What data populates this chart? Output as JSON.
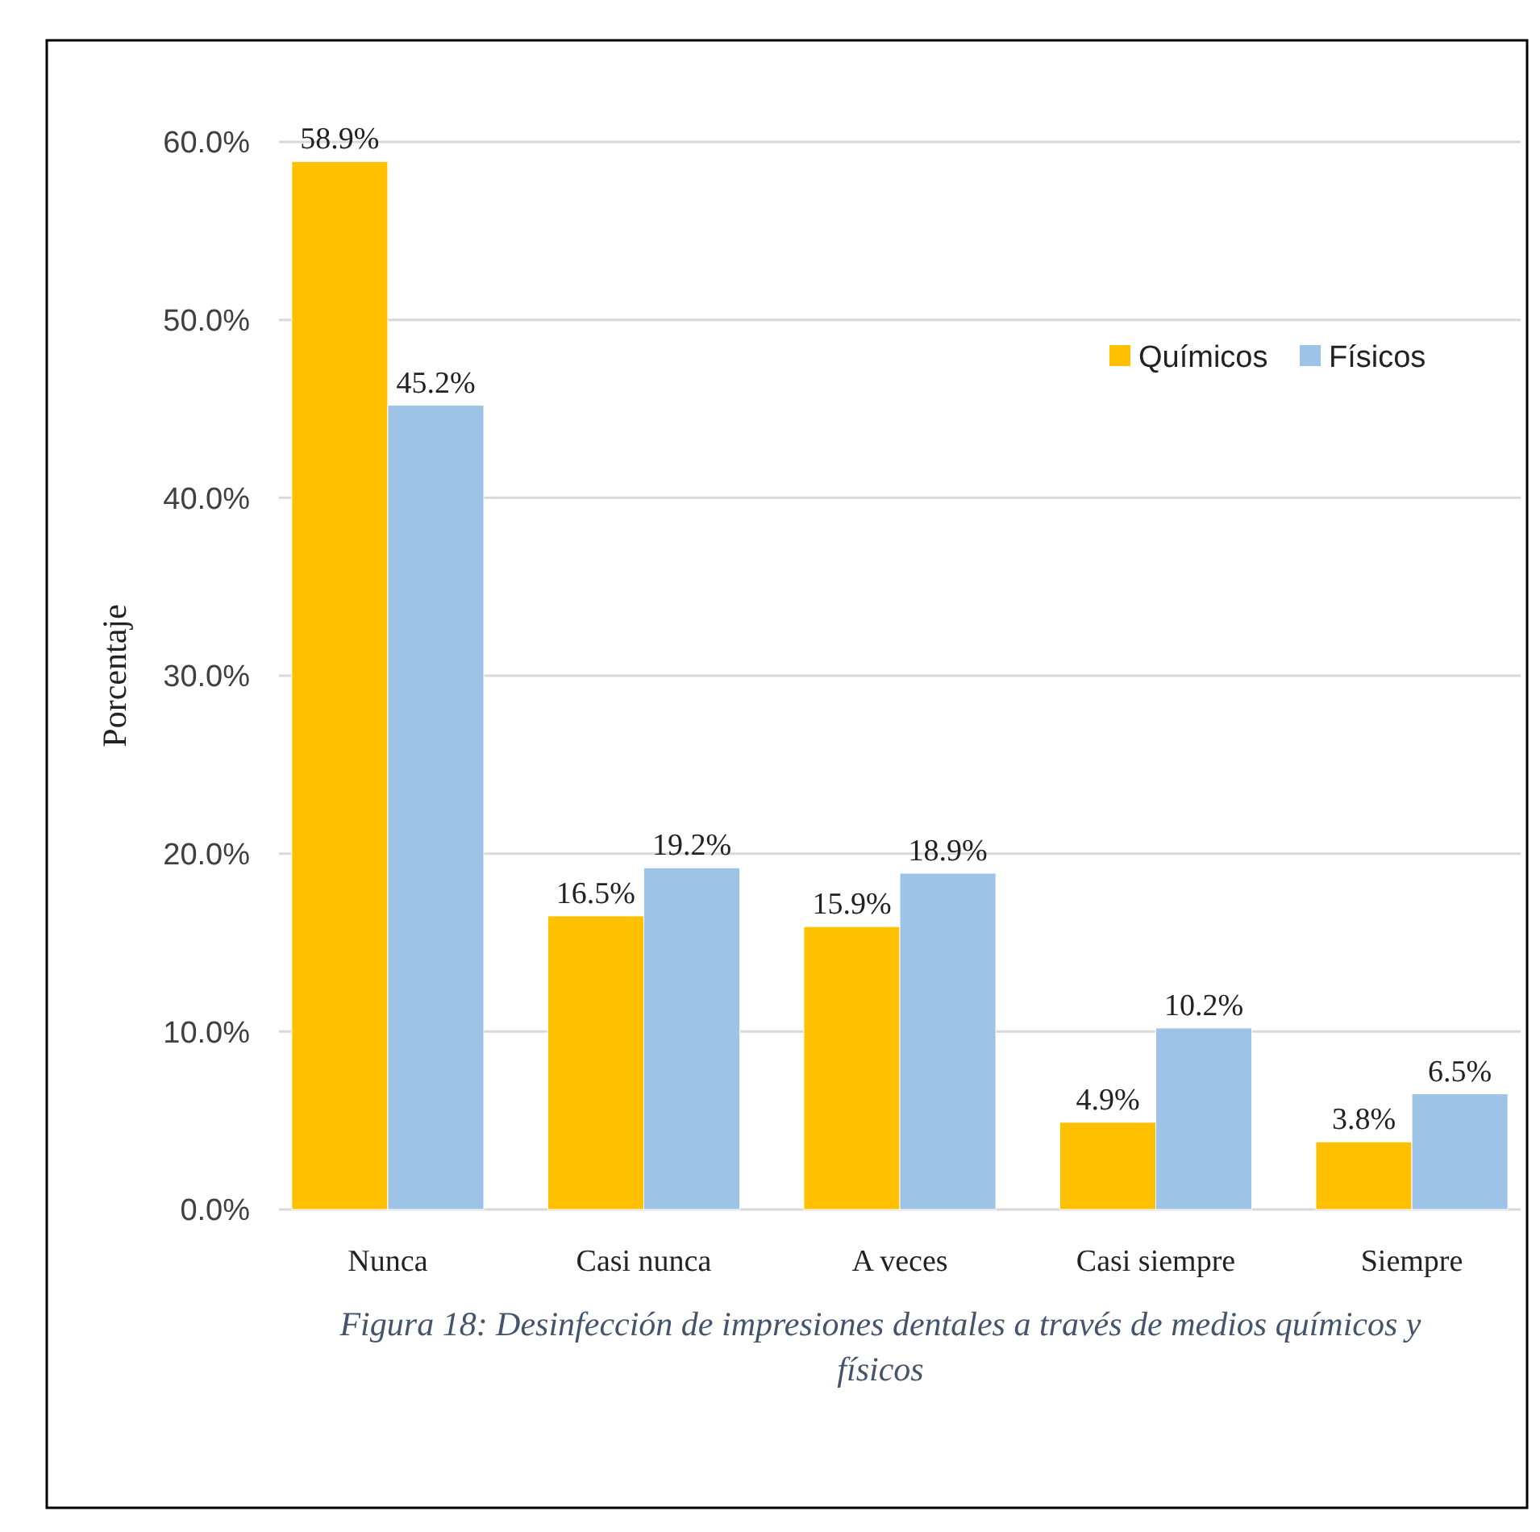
{
  "chart_data": {
    "type": "bar",
    "ylabel": "Porcentaje",
    "categories": [
      "Nunca",
      "Casi nunca",
      "A veces",
      "Casi siempre",
      "Siempre"
    ],
    "series": [
      {
        "name": "Químicos",
        "color": "#ffc000",
        "values": [
          58.9,
          16.5,
          15.9,
          4.9,
          3.8
        ],
        "value_labels": [
          "58.9%",
          "16.5%",
          "15.9%",
          "4.9%",
          "3.8%"
        ]
      },
      {
        "name": "Físicos",
        "color": "#9dc3e6",
        "values": [
          45.2,
          19.2,
          18.9,
          10.2,
          6.5
        ],
        "value_labels": [
          "45.2%",
          "19.2%",
          "18.9%",
          "10.2%",
          "6.5%"
        ]
      }
    ],
    "ylim": [
      0,
      60
    ],
    "yticks": [
      {
        "value": 0,
        "label": "0.0%"
      },
      {
        "value": 10,
        "label": "10.0%"
      },
      {
        "value": 20,
        "label": "20.0%"
      },
      {
        "value": 30,
        "label": "30.0%"
      },
      {
        "value": 40,
        "label": "40.0%"
      },
      {
        "value": 50,
        "label": "50.0%"
      },
      {
        "value": 60,
        "label": "60.0%"
      }
    ],
    "grid": "y",
    "legend": "top right",
    "annotations": [
      "Figura 18: Desinfección de impresiones dentales a través de medios químicos y físicos"
    ]
  }
}
